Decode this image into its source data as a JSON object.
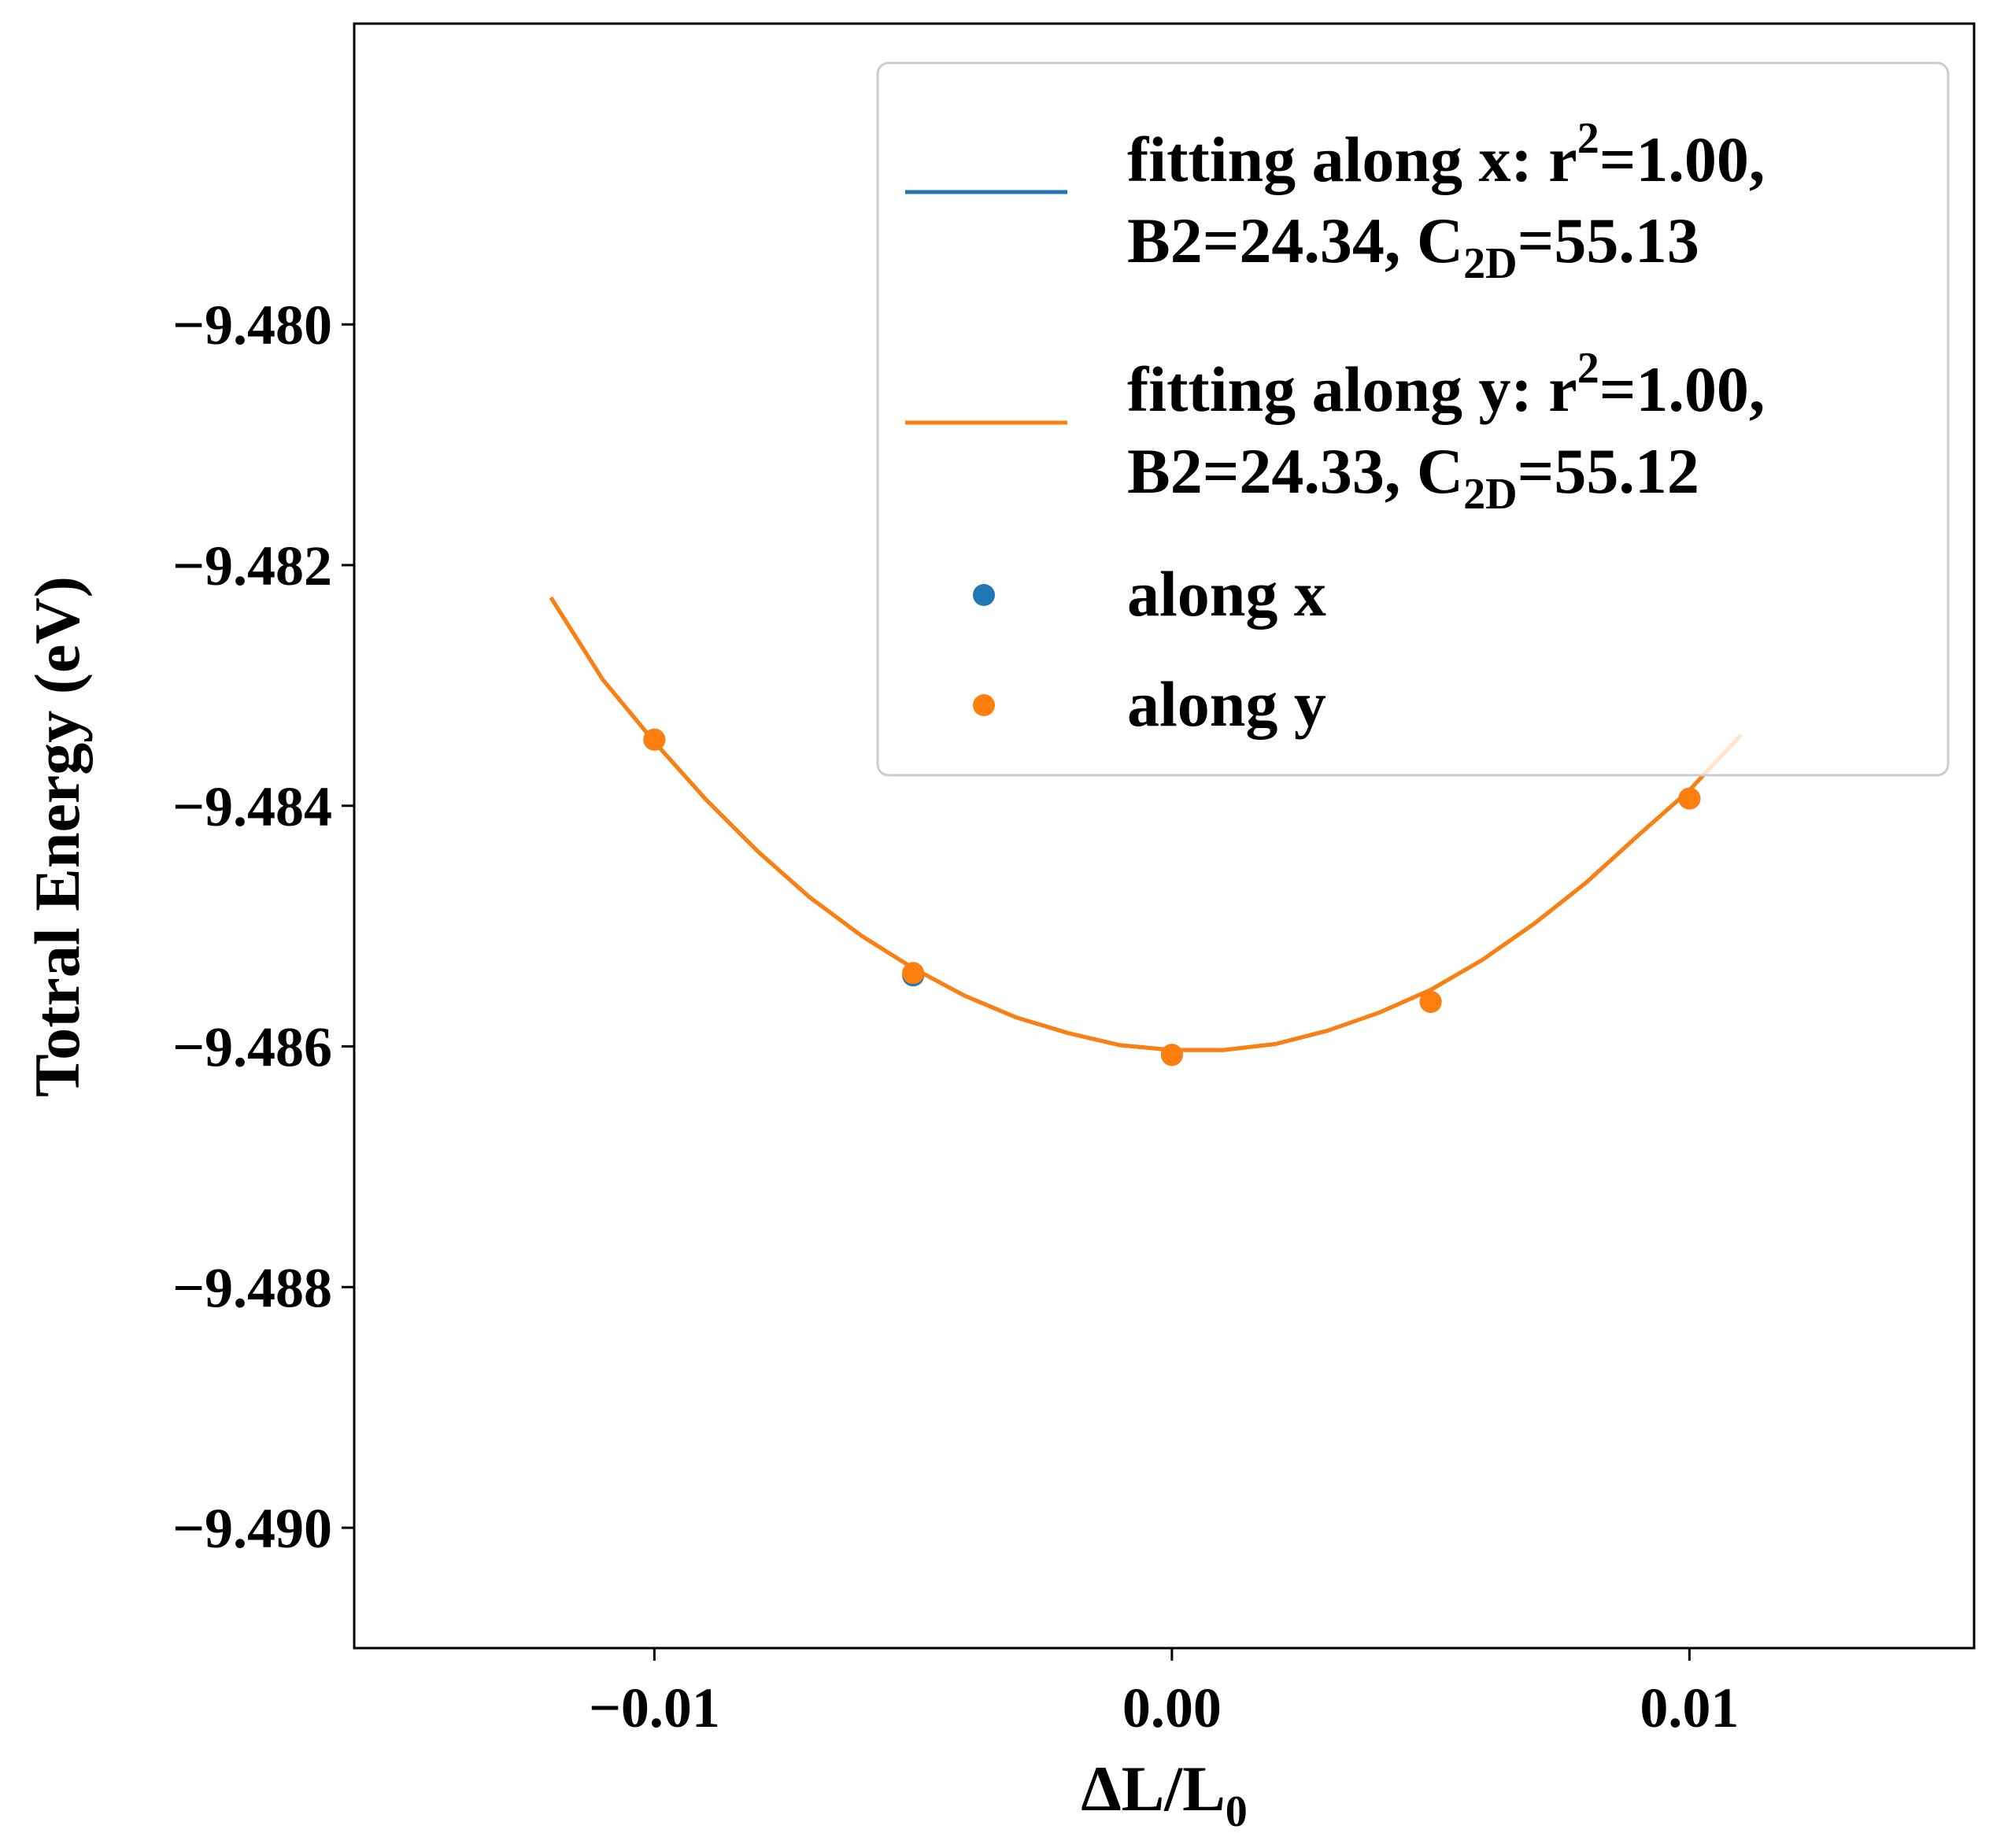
{
  "chart_data": {
    "type": "line",
    "title": "",
    "xlabel": "ΔL/L",
    "xlabel_sub": "0",
    "ylabel": "Totral Energy (eV)",
    "xlim": [
      -0.0158,
      0.0155
    ],
    "ylim": [
      -0.491,
      -0.4775
    ],
    "ylim_offset": -9,
    "y_base": -9,
    "xticks": [
      -0.01,
      0.0,
      0.01
    ],
    "xtick_labels": [
      "−0.01",
      "0.00",
      "0.01"
    ],
    "yticks": [
      -9.48,
      -9.482,
      -9.484,
      -9.486,
      -9.488,
      -9.49
    ],
    "ytick_labels": [
      "−9.480",
      "−9.482",
      "−9.484",
      "−9.486",
      "−9.488",
      "−9.490"
    ],
    "grid": false,
    "legend_position": "top-right",
    "series": [
      {
        "name": "fitting along x",
        "kind": "line",
        "color": "#1f77b4",
        "x": [
          -0.012,
          -0.011,
          -0.01,
          -0.009,
          -0.008,
          -0.007,
          -0.006,
          -0.005,
          -0.004,
          -0.003,
          -0.002,
          -0.001,
          0.0,
          0.001,
          0.002,
          0.003,
          0.004,
          0.005,
          0.006,
          0.007,
          0.008,
          0.009,
          0.01,
          0.011
        ],
        "y": [
          -9.48227,
          -9.48295,
          -9.48347,
          -9.48395,
          -9.48438,
          -9.48476,
          -9.48508,
          -9.48535,
          -9.48558,
          -9.48576,
          -9.48589,
          -9.48599,
          -9.48603,
          -9.48603,
          -9.48598,
          -9.48587,
          -9.48572,
          -9.48553,
          -9.48528,
          -9.48498,
          -9.48464,
          -9.48425,
          -9.48387,
          -9.48341
        ]
      },
      {
        "name": "fitting along y",
        "kind": "line",
        "color": "#ff7f0e",
        "x": [
          -0.012,
          -0.011,
          -0.01,
          -0.009,
          -0.008,
          -0.007,
          -0.006,
          -0.005,
          -0.004,
          -0.003,
          -0.002,
          -0.001,
          0.0,
          0.001,
          0.002,
          0.003,
          0.004,
          0.005,
          0.006,
          0.007,
          0.008,
          0.009,
          0.01,
          0.011
        ],
        "y": [
          -9.48227,
          -9.48295,
          -9.48347,
          -9.48395,
          -9.48438,
          -9.48476,
          -9.48508,
          -9.48535,
          -9.48558,
          -9.48576,
          -9.48589,
          -9.48599,
          -9.48603,
          -9.48603,
          -9.48598,
          -9.48587,
          -9.48572,
          -9.48553,
          -9.48528,
          -9.48498,
          -9.48464,
          -9.48425,
          -9.48387,
          -9.48341
        ]
      },
      {
        "name": "along x",
        "kind": "scatter",
        "color": "#1f77b4",
        "x": [
          -0.01,
          -0.005,
          0.0,
          0.005,
          0.01
        ],
        "y": [
          -9.48345,
          -9.48541,
          -9.48607,
          -9.48563,
          -9.48394
        ]
      },
      {
        "name": "along y",
        "kind": "scatter",
        "color": "#ff7f0e",
        "x": [
          -0.01,
          -0.005,
          0.0,
          0.005,
          0.01
        ],
        "y": [
          -9.48345,
          -9.48539,
          -9.48607,
          -9.48563,
          -9.48394
        ]
      }
    ]
  },
  "legend": {
    "line_x": {
      "line1_prefix": "fitting along x: r",
      "line1_sup": "2",
      "line1_suffix": "=1.00,",
      "line2_prefix": "B2=24.34, C",
      "line2_sub": "2D",
      "line2_suffix": "=55.13"
    },
    "line_y": {
      "line1_prefix": "fitting along y: r",
      "line1_sup": "2",
      "line1_suffix": "=1.00,",
      "line2_prefix": "B2=24.33, C",
      "line2_sub": "2D",
      "line2_suffix": "=55.12"
    },
    "scatter_x": "along x",
    "scatter_y": "along y"
  }
}
